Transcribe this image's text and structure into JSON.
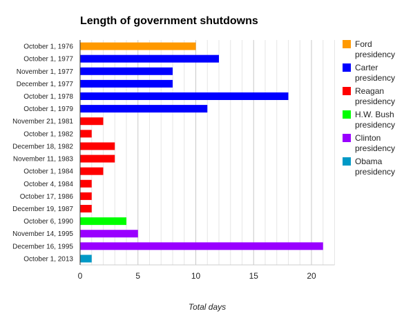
{
  "chart_data": {
    "type": "bar",
    "orientation": "horizontal",
    "title": "Length of government shutdowns",
    "xlabel": "Total days",
    "ylabel": "",
    "xlim": [
      0,
      22
    ],
    "xticks": [
      0,
      5,
      10,
      15,
      20
    ],
    "grid": "vertical gridline every 1 day",
    "legend_position": "right",
    "categories": [
      "October 1, 1976",
      "October 1, 1977",
      "November 1, 1977",
      "December 1, 1977",
      "October 1, 1978",
      "October 1, 1979",
      "November 21, 1981",
      "October 1, 1982",
      "December 18, 1982",
      "November 11, 1983",
      "October 1, 1984",
      "October 4, 1984",
      "October 17, 1986",
      "December 19, 1987",
      "October 6, 1990",
      "November 14, 1995",
      "December 16, 1995",
      "October 1, 2013"
    ],
    "values": [
      10,
      12,
      8,
      8,
      18,
      11,
      2,
      1,
      3,
      3,
      2,
      1,
      1,
      1,
      4,
      5,
      21,
      1
    ],
    "bar_series": [
      0,
      1,
      1,
      1,
      1,
      1,
      2,
      2,
      2,
      2,
      2,
      2,
      2,
      2,
      3,
      4,
      4,
      5
    ],
    "series": [
      {
        "name": "Ford presidency",
        "line1": "Ford",
        "line2": "presidency",
        "color": "#ff9900"
      },
      {
        "name": "Carter presidency",
        "line1": "Carter",
        "line2": "presidency",
        "color": "#0000ff"
      },
      {
        "name": "Reagan presidency",
        "line1": "Reagan",
        "line2": "presidency",
        "color": "#ff0000"
      },
      {
        "name": "H.W. Bush presidency",
        "line1": "H.W. Bush",
        "line2": "presidency",
        "color": "#00ff00"
      },
      {
        "name": "Clinton presidency",
        "line1": "Clinton",
        "line2": "presidency",
        "color": "#9900ff"
      },
      {
        "name": "Obama presidency",
        "line1": "Obama",
        "line2": "presidency",
        "color": "#0099c6"
      }
    ]
  }
}
